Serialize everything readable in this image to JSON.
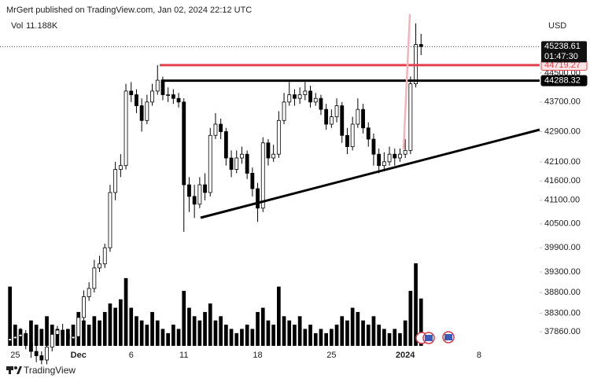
{
  "chart_data": {
    "type": "candlestick",
    "header": "MrGert published on TradingView.com, Jan 02, 2024 22:12 UTC",
    "volume_title": "Vol",
    "volume_label": "11.188K",
    "currency": "USD",
    "countdown": "01:47:30",
    "footer": "TradingView",
    "log": true,
    "ylim": [
      37530,
      46120
    ],
    "yticks": [
      {
        "value": 44500,
        "label": "44500.00"
      },
      {
        "value": 43700,
        "label": "43700.00"
      },
      {
        "value": 42900,
        "label": "42900.00"
      },
      {
        "value": 42100,
        "label": "42100.00"
      },
      {
        "value": 41600,
        "label": "41600.00"
      },
      {
        "value": 41100,
        "label": "41100.00"
      },
      {
        "value": 40500,
        "label": "40500.00"
      },
      {
        "value": 39900,
        "label": "39900.00"
      },
      {
        "value": 39300,
        "label": "39300.00"
      },
      {
        "value": 38800,
        "label": "38800.00"
      },
      {
        "value": 38300,
        "label": "38300.00"
      },
      {
        "value": 37860,
        "label": "37860.00"
      }
    ],
    "levels": [
      {
        "value": 44719.27,
        "color": "#e0414f"
      },
      {
        "value": 44288.32,
        "color": "#000000"
      }
    ],
    "volume_lim": [
      0,
      78
    ],
    "color": "#000000",
    "categories": [
      null,
      "25",
      null,
      null,
      null,
      null,
      null,
      null,
      null,
      null,
      null,
      null,
      null,
      "Dec",
      null,
      null,
      null,
      null,
      null,
      null,
      null,
      null,
      null,
      "6",
      null,
      null,
      null,
      null,
      null,
      null,
      null,
      null,
      null,
      "11",
      null,
      null,
      null,
      null,
      null,
      null,
      null,
      null,
      null,
      null,
      null,
      null,
      null,
      "18",
      null,
      null,
      null,
      null,
      null,
      null,
      null,
      null,
      null,
      null,
      null,
      null,
      null,
      "25",
      null,
      null,
      null,
      null,
      null,
      null,
      null,
      null,
      null,
      null,
      null,
      null,
      null,
      "2024",
      null,
      null,
      null,
      null,
      null,
      null,
      null,
      null,
      null,
      null,
      null,
      null,
      null,
      "8",
      null,
      null,
      null,
      null,
      null,
      null,
      null,
      null,
      null,
      null,
      null
    ],
    "open": [
      37650,
      37700,
      37750,
      37800,
      37600,
      37400,
      37300,
      37200,
      37500,
      37800,
      37900,
      37800,
      37700,
      37750,
      38200,
      38700,
      38900,
      39400,
      39500,
      39900,
      41300,
      41900,
      42000,
      44000,
      43900,
      43600,
      43200,
      43700,
      44000,
      44300,
      43900,
      43900,
      43800,
      43700,
      41500,
      41200,
      41000,
      41500,
      41300,
      42800,
      43100,
      42900,
      42200,
      41900,
      42200,
      42300,
      41800,
      41400,
      40900,
      42600,
      42200,
      42300,
      43200,
      43700,
      43900,
      43800,
      43900,
      44000,
      43700,
      43800,
      43500,
      43100,
      43300,
      43600,
      42800,
      42500,
      43100,
      43500,
      43000,
      42700,
      42300,
      42000,
      42100,
      42300,
      42200,
      42300,
      42400,
      44200,
      45300,
      null,
      null,
      null,
      null,
      null,
      null,
      null,
      null,
      null,
      null,
      null,
      null,
      null,
      null,
      null,
      null,
      null,
      null,
      null,
      null,
      null,
      null
    ],
    "high": [
      37800,
      37850,
      37950,
      37900,
      37700,
      37550,
      37400,
      37600,
      37900,
      38000,
      38050,
      37900,
      37850,
      38300,
      38850,
      39050,
      39600,
      39700,
      40000,
      41500,
      42100,
      42300,
      44200,
      44250,
      44050,
      43800,
      43900,
      44200,
      44720,
      44400,
      44100,
      44050,
      43950,
      43800,
      41700,
      41500,
      41700,
      41800,
      43000,
      43400,
      43250,
      43000,
      42400,
      42400,
      42500,
      42400,
      41950,
      41550,
      42750,
      42700,
      42550,
      43450,
      43950,
      44250,
      44050,
      44100,
      44250,
      44150,
      43950,
      43900,
      43650,
      43500,
      43800,
      43700,
      43000,
      43300,
      43800,
      43650,
      43150,
      42850,
      42450,
      42350,
      42500,
      42450,
      42450,
      42700,
      44400,
      45900,
      45600,
      null,
      null,
      null,
      null,
      null,
      null,
      null,
      null,
      null,
      null,
      null,
      null,
      null,
      null,
      null,
      null,
      null,
      null,
      null,
      null,
      null,
      null
    ],
    "low": [
      37550,
      37600,
      37650,
      37450,
      37250,
      37150,
      37100,
      37100,
      37400,
      37700,
      37650,
      37600,
      37600,
      37650,
      38100,
      38600,
      38800,
      39300,
      39400,
      39800,
      41100,
      41700,
      41900,
      43700,
      43400,
      42900,
      43100,
      43600,
      43900,
      43750,
      43700,
      43650,
      43550,
      40300,
      40800,
      40650,
      40900,
      41100,
      41200,
      42700,
      42700,
      42000,
      41700,
      41800,
      42050,
      41650,
      41200,
      40550,
      40800,
      42000,
      42100,
      42200,
      43100,
      43600,
      43600,
      43650,
      43750,
      43550,
      43600,
      43350,
      42950,
      43000,
      43150,
      42600,
      42300,
      42400,
      43000,
      42850,
      42500,
      42000,
      41800,
      41850,
      42000,
      42000,
      42100,
      42200,
      42300,
      44100,
      45000,
      null,
      null,
      null,
      null,
      null,
      null,
      null,
      null,
      null,
      null,
      null,
      null,
      null,
      null,
      null,
      null,
      null,
      null,
      null,
      null,
      null,
      null
    ],
    "close": [
      37700,
      37750,
      37800,
      37600,
      37400,
      37300,
      37200,
      37500,
      37800,
      37900,
      37800,
      37700,
      37750,
      38200,
      38700,
      38900,
      39400,
      39500,
      39900,
      41300,
      41900,
      42000,
      44000,
      43900,
      43600,
      43200,
      43700,
      44000,
      44300,
      43900,
      43900,
      43800,
      43700,
      41500,
      41200,
      41000,
      41500,
      41300,
      42800,
      43100,
      42900,
      42200,
      41900,
      42200,
      42300,
      41800,
      41400,
      40900,
      42600,
      42200,
      42300,
      43200,
      43700,
      43900,
      43800,
      43900,
      44000,
      43700,
      43800,
      43500,
      43100,
      43300,
      43600,
      42800,
      42500,
      43100,
      43500,
      43000,
      42700,
      42300,
      42000,
      42100,
      42300,
      42200,
      42300,
      42400,
      44200,
      45300,
      45238.61,
      null,
      null,
      null,
      null,
      null,
      null,
      null,
      null,
      null,
      null,
      null,
      null,
      null,
      null,
      null,
      null,
      null,
      null,
      null,
      null,
      null,
      null
    ],
    "volume": [
      14,
      5,
      4,
      3,
      6,
      5,
      4,
      7,
      5,
      4,
      3,
      4,
      5,
      8,
      6,
      5,
      7,
      6,
      8,
      10,
      9,
      11,
      16,
      9,
      7,
      6,
      5,
      8,
      6,
      4,
      3,
      5,
      4,
      13,
      9,
      7,
      6,
      8,
      10,
      6,
      7,
      5,
      4,
      3,
      4,
      5,
      4,
      8,
      9,
      6,
      5,
      14,
      7,
      6,
      5,
      7,
      4,
      5,
      3,
      4,
      3,
      4,
      5,
      7,
      6,
      9,
      8,
      6,
      5,
      7,
      5,
      4,
      3,
      4,
      3,
      6,
      13,
      19.5,
      11.188,
      null,
      null,
      null,
      null,
      null,
      null,
      null,
      null,
      null,
      null,
      null,
      null,
      null,
      null,
      null,
      null,
      null,
      null,
      null,
      null,
      null,
      null
    ]
  }
}
